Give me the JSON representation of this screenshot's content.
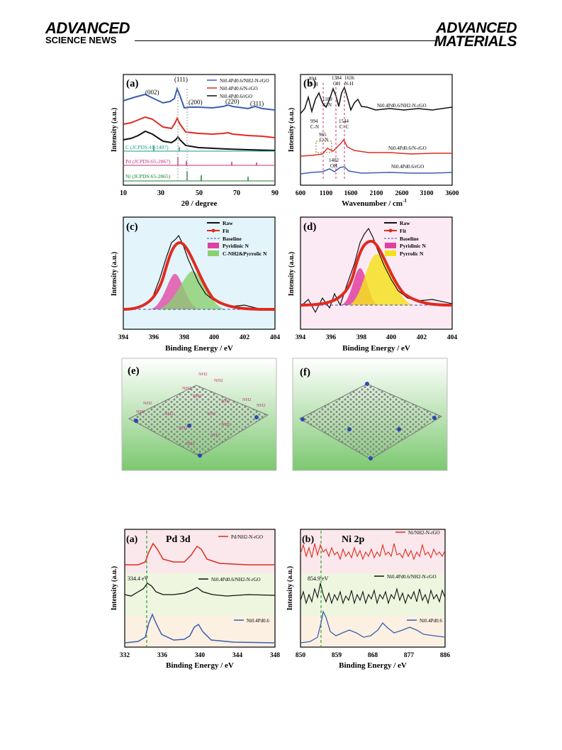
{
  "header": {
    "left_brand_line1": "ADVANCED",
    "left_brand_line2": "SCIENCE NEWS",
    "right_brand_line1": "ADVANCED",
    "right_brand_line2": "MATERIALS"
  },
  "fig1": {
    "a": {
      "label": "(a)",
      "xlabel": "2θ / degree",
      "ylabel": "Intensity (a.u.)",
      "xticks": [
        "10",
        "30",
        "50",
        "70",
        "90"
      ],
      "peaks": [
        "(002)",
        "(111)",
        "(200)",
        "(220)",
        "(311)"
      ],
      "legend": [
        "Ni0.4Pd0.6/NH2-N-rGO",
        "Ni0.4Pd0.6/N-rGO",
        "Ni0.4Pd0.6/rGO"
      ],
      "refs": [
        "C (JCPDS:41-1487)",
        "Pd (JCPDS:65-2867)",
        "Ni (JCPDS:65-2865)"
      ],
      "colors": {
        "blue": "#3a5fb0",
        "red": "#e02a20",
        "black": "#111111",
        "teal": "#1a9a8a",
        "magenta": "#c0307a",
        "green": "#1a7a30"
      }
    },
    "b": {
      "label": "(b)",
      "xlabel": "Wavenumber / cm",
      "xlabel_sup": "-1",
      "ylabel": "Intensity (a.u.)",
      "xticks": [
        "600",
        "1100",
        "1600",
        "2100",
        "2600",
        "3100",
        "3600"
      ],
      "annotations": [
        "894",
        "N-H",
        "1384",
        "OH",
        "1636",
        "N-H",
        "1189",
        "C-N",
        "994",
        "C-N",
        "1544",
        "C=C",
        "965",
        "C-N",
        "1402",
        "OH"
      ],
      "series": [
        "Ni0.4Pd0.6/NH2-N-rGO",
        "Ni0.4Pd0.6/N-rGO",
        "Ni0.4Pd0.6/rGO"
      ]
    },
    "c": {
      "label": "(c)",
      "xlabel": "Binding Energy / eV",
      "ylabel": "Intensity (a.u.)",
      "xticks": [
        "394",
        "396",
        "398",
        "400",
        "402",
        "404"
      ],
      "legend": [
        "Raw",
        "Fit",
        "Baseline",
        "Pyridinic N",
        "C-NH2&Pyrrolic N"
      ]
    },
    "d": {
      "label": "(d)",
      "xlabel": "Binding Energy / eV",
      "ylabel": "Intensity (a.u.)",
      "xticks": [
        "394",
        "396",
        "398",
        "400",
        "402",
        "404"
      ],
      "legend": [
        "Raw",
        "Fit",
        "Baseline",
        "Pyridinic N",
        "Pyrrolic N"
      ]
    },
    "e": {
      "label": "(e)",
      "group": "NH2"
    },
    "f": {
      "label": "(f)"
    }
  },
  "fig2": {
    "a": {
      "label": "(a)",
      "title": "Pd 3d",
      "xlabel": "Binding Energy / eV",
      "ylabel": "Intensity (a.u.)",
      "xticks": [
        "332",
        "336",
        "340",
        "344",
        "348"
      ],
      "series": [
        "Pd/NH2-N-rGO",
        "Ni0.4Pd0.6/NH2-N-rGO",
        "Ni0.4Pd0.6"
      ],
      "marker": "334.4 eV"
    },
    "b": {
      "label": "(b)",
      "title": "Ni 2p",
      "xlabel": "Binding Energy / eV",
      "ylabel": "Intensity (a.u.)",
      "xticks": [
        "850",
        "859",
        "868",
        "877",
        "886"
      ],
      "series": [
        "Ni/NH2-N-rGO",
        "Ni0.4Pd0.6/NH2-N-rGO",
        "Ni0.4Pd0.6"
      ],
      "marker": "854.9 eV"
    }
  }
}
